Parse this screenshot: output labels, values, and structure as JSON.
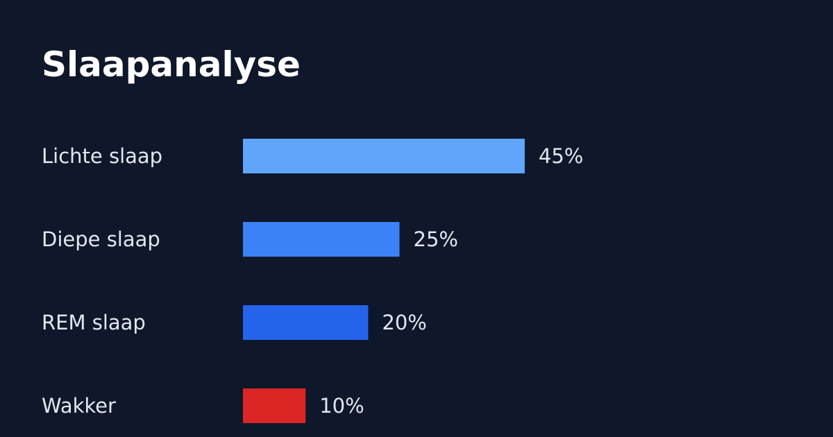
{
  "chart_data": {
    "type": "bar",
    "orientation": "horizontal",
    "title": "Slaapanalyse",
    "categories": [
      "Lichte slaap",
      "Diepe slaap",
      "REM slaap",
      "Wakker"
    ],
    "values": [
      45,
      25,
      20,
      10
    ],
    "value_labels": [
      "45%",
      "25%",
      "20%",
      "10%"
    ],
    "colors": [
      "#60a5fa",
      "#3b82f6",
      "#2563eb",
      "#dc2626"
    ]
  }
}
